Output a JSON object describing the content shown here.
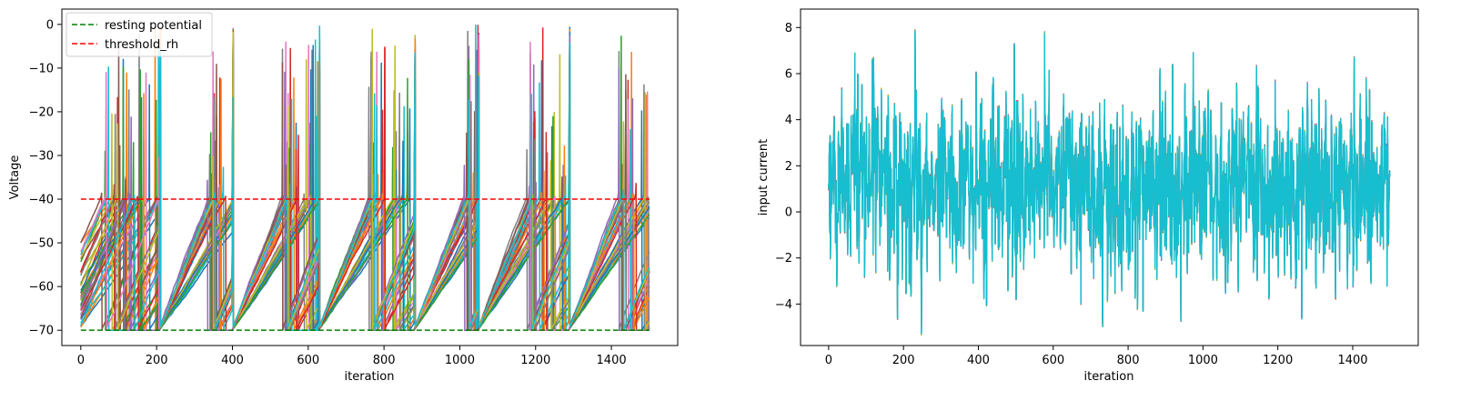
{
  "chart_data": [
    {
      "type": "line",
      "title": "",
      "xlabel": "iteration",
      "ylabel": "Voltage",
      "xlim": [
        -50,
        1575
      ],
      "ylim": [
        -73.5,
        3.5
      ],
      "xticks": [
        0,
        200,
        400,
        600,
        800,
        1000,
        1200,
        1400
      ],
      "yticks": [
        0,
        -10,
        -20,
        -30,
        -40,
        -50,
        -60,
        -70
      ],
      "grid": false,
      "legend": {
        "placement": "top-left",
        "entries": [
          {
            "label": "resting potential",
            "color": "#008000",
            "dash": "dashed"
          },
          {
            "label": "threshold_rh",
            "color": "#ff0000",
            "dash": "dashed"
          }
        ]
      },
      "reference_lines": [
        {
          "name": "resting potential",
          "y": -70,
          "x": [
            0,
            1500
          ],
          "color": "#008000"
        },
        {
          "name": "threshold_rh",
          "y": -40,
          "x": [
            0,
            1500
          ],
          "color": "#ff0000"
        }
      ],
      "reset_events": [
        0,
        210,
        400,
        630,
        880,
        1050,
        1290
      ],
      "series_count": 40,
      "series_colors": [
        "#1f77b4",
        "#ff7f0e",
        "#2ca02c",
        "#d62728",
        "#9467bd",
        "#8c564b",
        "#e377c2",
        "#7f7f7f",
        "#bcbd22",
        "#17becf"
      ],
      "series_summary": "40 membrane-voltage traces (iterations 0–1500) ramping from about -70 toward -40, spiking up to about 0 and resetting to -70"
    },
    {
      "type": "line",
      "title": "",
      "xlabel": "iteration",
      "ylabel": "input current",
      "xlim": [
        -75,
        1575
      ],
      "ylim": [
        -5.8,
        8.8
      ],
      "xticks": [
        0,
        200,
        400,
        600,
        800,
        1000,
        1200,
        1400
      ],
      "yticks": [
        8,
        6,
        4,
        2,
        0,
        -2,
        -4
      ],
      "grid": false,
      "series_count": 40,
      "series_colors": [
        "#1f77b4",
        "#ff7f0e",
        "#2ca02c",
        "#d62728",
        "#9467bd",
        "#8c564b",
        "#e377c2",
        "#7f7f7f",
        "#bcbd22",
        "#17becf"
      ],
      "top_series_color": "#17becf",
      "noise_stats": {
        "mean": 1.0,
        "std": 2.0,
        "min": -5.3,
        "max": 8.2,
        "n_points": 1500
      }
    }
  ]
}
